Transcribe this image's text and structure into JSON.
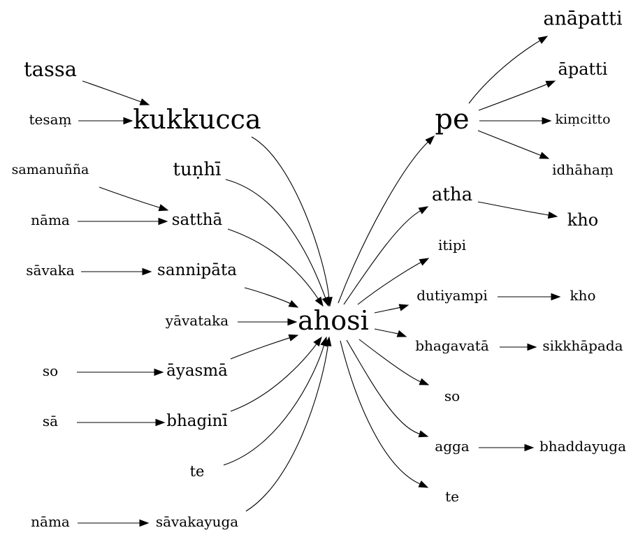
{
  "nodes": [
    {
      "id": "tassa",
      "label": "tassa"
    },
    {
      "id": "kukkucca",
      "label": "kukkucca"
    },
    {
      "id": "tesam",
      "label": "tesaṃ"
    },
    {
      "id": "samanunna",
      "label": "samanuñña"
    },
    {
      "id": "tunhi",
      "label": "tuṇhī"
    },
    {
      "id": "nama1",
      "label": "nāma"
    },
    {
      "id": "sattha",
      "label": "satthā"
    },
    {
      "id": "savaka",
      "label": "sāvaka"
    },
    {
      "id": "sannipata",
      "label": "sannipāta"
    },
    {
      "id": "yavataka",
      "label": "yāvataka"
    },
    {
      "id": "ahosi",
      "label": "ahosi"
    },
    {
      "id": "so1",
      "label": "so"
    },
    {
      "id": "ayasma",
      "label": "āyasmā"
    },
    {
      "id": "sa",
      "label": "sā"
    },
    {
      "id": "bhagini",
      "label": "bhaginī"
    },
    {
      "id": "te1",
      "label": "te"
    },
    {
      "id": "nama2",
      "label": "nāma"
    },
    {
      "id": "savakayuga",
      "label": "sāvakayuga"
    },
    {
      "id": "anapatti",
      "label": "anāpatti"
    },
    {
      "id": "apatti",
      "label": "āpatti"
    },
    {
      "id": "pe",
      "label": "pe"
    },
    {
      "id": "kimcitto",
      "label": "kiṃcitto"
    },
    {
      "id": "idhaham",
      "label": "idhāhaṃ"
    },
    {
      "id": "atha",
      "label": "atha"
    },
    {
      "id": "kho1",
      "label": "kho"
    },
    {
      "id": "itipi",
      "label": "itipi"
    },
    {
      "id": "dutiyampi",
      "label": "dutiyampi"
    },
    {
      "id": "kho2",
      "label": "kho"
    },
    {
      "id": "bhagavata",
      "label": "bhagavatā"
    },
    {
      "id": "sikkhapada",
      "label": "sikkhāpada"
    },
    {
      "id": "so2",
      "label": "so"
    },
    {
      "id": "agga",
      "label": "agga"
    },
    {
      "id": "bhaddayuga",
      "label": "bhaddayuga"
    },
    {
      "id": "te2",
      "label": "te"
    }
  ],
  "edges": [
    {
      "from": "tassa",
      "to": "kukkucca"
    },
    {
      "from": "tesam",
      "to": "kukkucca"
    },
    {
      "from": "samanunna",
      "to": "sattha"
    },
    {
      "from": "nama1",
      "to": "sattha"
    },
    {
      "from": "savaka",
      "to": "sannipata"
    },
    {
      "from": "so1",
      "to": "ayasma"
    },
    {
      "from": "sa",
      "to": "bhagini"
    },
    {
      "from": "nama2",
      "to": "savakayuga"
    },
    {
      "from": "kukkucca",
      "to": "ahosi"
    },
    {
      "from": "tunhi",
      "to": "ahosi"
    },
    {
      "from": "sattha",
      "to": "ahosi"
    },
    {
      "from": "sannipata",
      "to": "ahosi"
    },
    {
      "from": "yavataka",
      "to": "ahosi"
    },
    {
      "from": "ayasma",
      "to": "ahosi"
    },
    {
      "from": "bhagini",
      "to": "ahosi"
    },
    {
      "from": "te1",
      "to": "ahosi"
    },
    {
      "from": "savakayuga",
      "to": "ahosi"
    },
    {
      "from": "ahosi",
      "to": "pe"
    },
    {
      "from": "ahosi",
      "to": "atha"
    },
    {
      "from": "ahosi",
      "to": "itipi"
    },
    {
      "from": "ahosi",
      "to": "dutiyampi"
    },
    {
      "from": "ahosi",
      "to": "bhagavata"
    },
    {
      "from": "ahosi",
      "to": "so2"
    },
    {
      "from": "ahosi",
      "to": "agga"
    },
    {
      "from": "ahosi",
      "to": "te2"
    },
    {
      "from": "pe",
      "to": "anapatti"
    },
    {
      "from": "pe",
      "to": "apatti"
    },
    {
      "from": "pe",
      "to": "kimcitto"
    },
    {
      "from": "pe",
      "to": "idhaham"
    },
    {
      "from": "atha",
      "to": "kho1"
    },
    {
      "from": "dutiyampi",
      "to": "kho2"
    },
    {
      "from": "bhagavata",
      "to": "sikkhapada"
    },
    {
      "from": "agga",
      "to": "bhaddayuga"
    }
  ]
}
